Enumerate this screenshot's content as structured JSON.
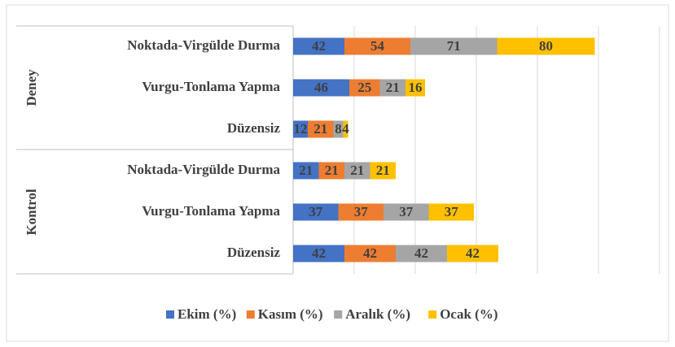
{
  "chart_data": {
    "type": "stacked_bar_horizontal",
    "groups": [
      {
        "name": "Deney",
        "categories": [
          "Noktada-Virgülde Durma",
          "Vurgu-Tonlama Yapma",
          "Düzensiz"
        ]
      },
      {
        "name": "Kontrol",
        "categories": [
          "Noktada-Virgülde Durma",
          "Vurgu-Tonlama Yapma",
          "Düzensiz"
        ]
      }
    ],
    "series": [
      {
        "name": "Ekim (%)",
        "color": "#4472c4",
        "values": [
          42,
          46,
          12,
          21,
          37,
          42
        ]
      },
      {
        "name": "Kasım (%)",
        "color": "#ed7d31",
        "values": [
          54,
          25,
          21,
          21,
          37,
          42
        ]
      },
      {
        "name": "Aralık (%)",
        "color": "#a5a5a5",
        "values": [
          71,
          21,
          8,
          21,
          37,
          42
        ]
      },
      {
        "name": "Ocak (%)",
        "color": "#ffc000",
        "values": [
          80,
          16,
          4,
          21,
          37,
          42
        ]
      }
    ],
    "xlim": [
      0,
      300
    ],
    "xticks": [
      0,
      50,
      100,
      150,
      200,
      250,
      300
    ],
    "grid": true,
    "legend": "bottom"
  }
}
